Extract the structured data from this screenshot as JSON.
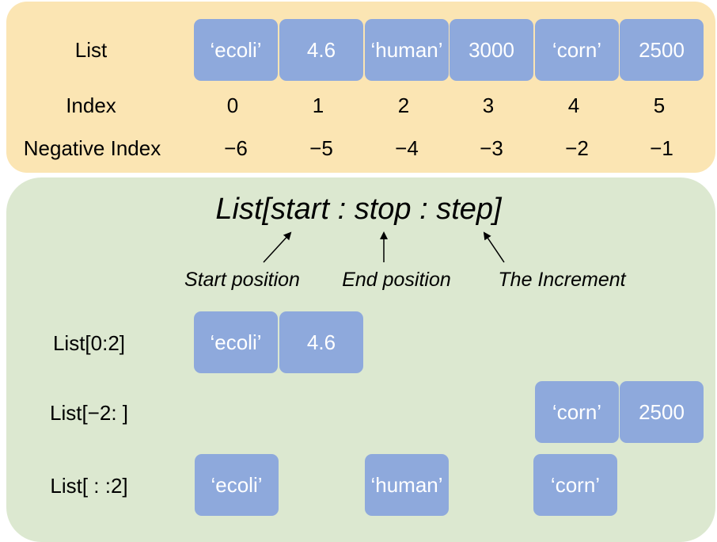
{
  "list_row": {
    "label": "List",
    "items": [
      "‘ecoli’",
      "4.6",
      "‘human’",
      "3000",
      "‘corn’",
      "2500"
    ]
  },
  "index_row": {
    "label": "Index",
    "values": [
      "0",
      "1",
      "2",
      "3",
      "4",
      "5"
    ]
  },
  "negative_index_row": {
    "label": "Negative Index",
    "values": [
      "−6",
      "−5",
      "−4",
      "−3",
      "−2",
      "−1"
    ]
  },
  "syntax": {
    "text": "List[start : stop : step]",
    "start_caption": "Start position",
    "end_caption": "End position",
    "step_caption": "The Increment"
  },
  "examples": [
    {
      "label": "List[0:2]",
      "items": [
        "‘ecoli’",
        "4.6"
      ]
    },
    {
      "label": "List[−2: ]",
      "items": [
        "‘corn’",
        "2500"
      ]
    },
    {
      "label": "List[ : :2]",
      "items": [
        "‘ecoli’",
        "‘human’",
        "‘corn’"
      ]
    }
  ]
}
